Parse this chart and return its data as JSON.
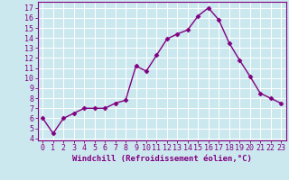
{
  "x": [
    0,
    1,
    2,
    3,
    4,
    5,
    6,
    7,
    8,
    9,
    10,
    11,
    12,
    13,
    14,
    15,
    16,
    17,
    18,
    19,
    20,
    21,
    22,
    23
  ],
  "y": [
    6.0,
    4.5,
    6.0,
    6.5,
    7.0,
    7.0,
    7.0,
    7.5,
    7.8,
    11.2,
    10.7,
    12.3,
    13.9,
    14.4,
    14.8,
    16.2,
    17.0,
    15.8,
    13.5,
    11.8,
    10.2,
    8.5,
    8.0,
    7.5
  ],
  "line_color": "#800080",
  "marker": "D",
  "marker_size": 2.5,
  "bg_color": "#cce8ef",
  "grid_color": "#ffffff",
  "xlabel": "Windchill (Refroidissement éolien,°C)",
  "ylabel_ticks": [
    4,
    5,
    6,
    7,
    8,
    9,
    10,
    11,
    12,
    13,
    14,
    15,
    16,
    17
  ],
  "xlim": [
    -0.5,
    23.5
  ],
  "ylim": [
    3.8,
    17.6
  ],
  "xlabel_fontsize": 6.5,
  "tick_fontsize": 6.0,
  "tick_color": "#800080",
  "label_color": "#800080",
  "spine_color": "#800080",
  "line_width": 1.0
}
